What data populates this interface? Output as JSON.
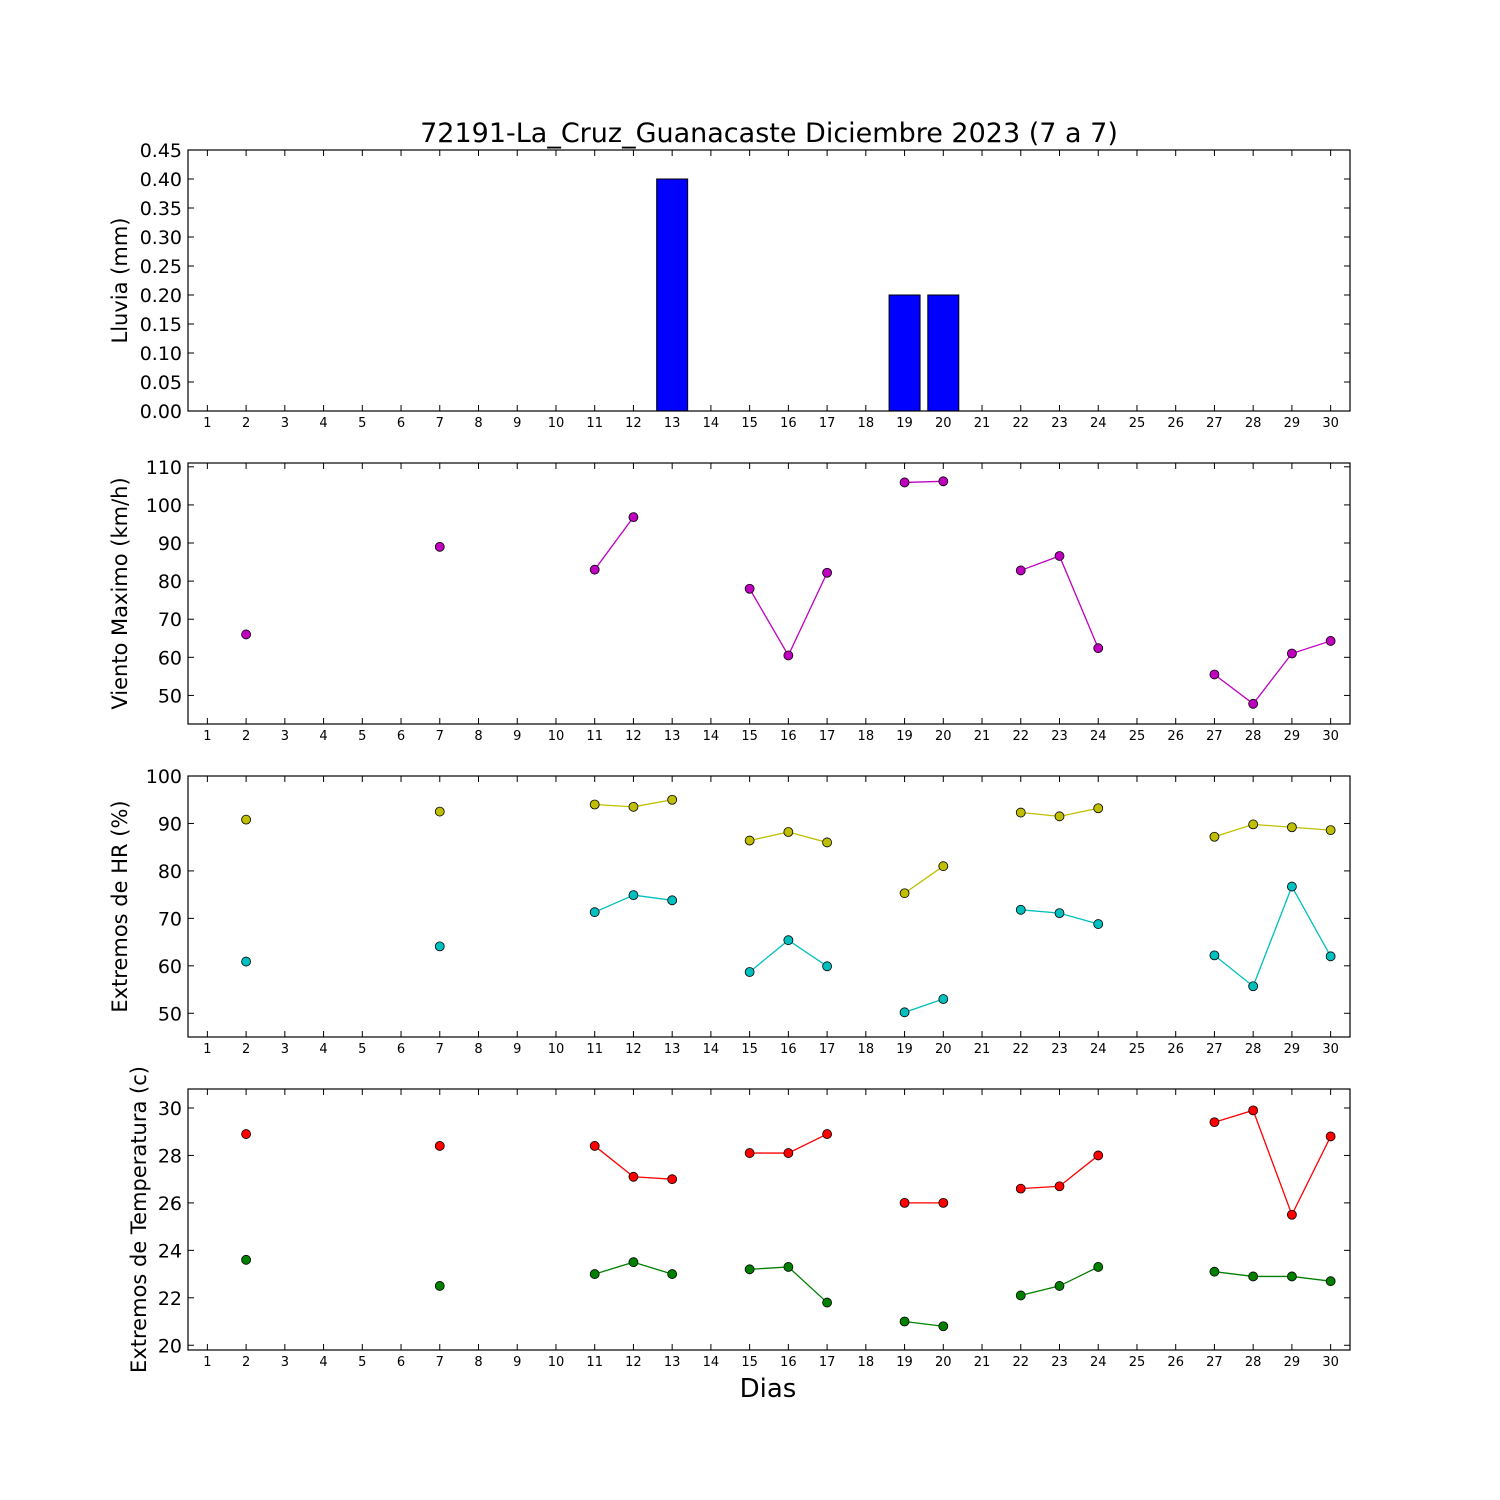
{
  "title": "72191-La_Cruz_Guanacaste Diciembre 2023  (7 a 7)",
  "xlabel": "Dias",
  "chart_data": [
    {
      "type": "bar",
      "ylabel": "Lluvia (mm)",
      "ylim": [
        0,
        0.45
      ],
      "yticks": [
        "0.00",
        "0.05",
        "0.10",
        "0.15",
        "0.20",
        "0.25",
        "0.30",
        "0.35",
        "0.40",
        "0.45"
      ],
      "xlim": [
        0.5,
        30.5
      ],
      "xticks": [
        "1",
        "2",
        "3",
        "4",
        "5",
        "6",
        "7",
        "8",
        "9",
        "10",
        "11",
        "12",
        "13",
        "14",
        "15",
        "16",
        "17",
        "18",
        "19",
        "20",
        "21",
        "22",
        "23",
        "24",
        "25",
        "26",
        "27",
        "28",
        "29",
        "30"
      ],
      "color": "#0000ff",
      "series": [
        {
          "x": [
            2,
            7,
            11,
            12,
            13,
            15,
            16,
            17,
            19,
            20,
            22,
            23,
            24,
            27,
            28,
            29,
            30
          ],
          "values": [
            0,
            0,
            0,
            0,
            0.4,
            0,
            0,
            0,
            0.2,
            0.2,
            0,
            0,
            0,
            0,
            0,
            0,
            0
          ]
        }
      ]
    },
    {
      "type": "line",
      "ylabel": "Viento Maximo (km/h)",
      "ylim": [
        42.5,
        111
      ],
      "yticks": [
        "50",
        "60",
        "70",
        "80",
        "90",
        "100",
        "110"
      ],
      "xlim": [
        0.5,
        30.5
      ],
      "xticks": [
        "1",
        "2",
        "3",
        "4",
        "5",
        "6",
        "7",
        "8",
        "9",
        "10",
        "11",
        "12",
        "13",
        "14",
        "15",
        "16",
        "17",
        "18",
        "19",
        "20",
        "21",
        "22",
        "23",
        "24",
        "25",
        "26",
        "27",
        "28",
        "29",
        "30"
      ],
      "series": [
        {
          "color": "#bf00bf",
          "segments": [
            [
              [
                2,
                66
              ]
            ],
            [
              [
                7,
                89
              ]
            ],
            [
              [
                11,
                83
              ],
              [
                12,
                96.8
              ]
            ],
            [
              [
                15,
                78
              ],
              [
                16,
                60.5
              ],
              [
                17,
                82.2
              ]
            ],
            [
              [
                19,
                105.9
              ],
              [
                20,
                106.2
              ]
            ],
            [
              [
                22,
                82.8
              ],
              [
                23,
                86.6
              ],
              [
                24,
                62.4
              ]
            ],
            [
              [
                27,
                55.5
              ],
              [
                28,
                47.8
              ],
              [
                29,
                61
              ],
              [
                30,
                64.3
              ]
            ]
          ]
        }
      ]
    },
    {
      "type": "line",
      "ylabel": "Extremos de HR (%)",
      "ylim": [
        45,
        100
      ],
      "yticks": [
        "50",
        "60",
        "70",
        "80",
        "90",
        "100"
      ],
      "xlim": [
        0.5,
        30.5
      ],
      "xticks": [
        "1",
        "2",
        "3",
        "4",
        "5",
        "6",
        "7",
        "8",
        "9",
        "10",
        "11",
        "12",
        "13",
        "14",
        "15",
        "16",
        "17",
        "18",
        "19",
        "20",
        "21",
        "22",
        "23",
        "24",
        "25",
        "26",
        "27",
        "28",
        "29",
        "30"
      ],
      "series": [
        {
          "color": "#bfbf00",
          "segments": [
            [
              [
                2,
                90.8
              ]
            ],
            [
              [
                7,
                92.5
              ]
            ],
            [
              [
                11,
                94
              ],
              [
                12,
                93.5
              ],
              [
                13,
                95
              ]
            ],
            [
              [
                15,
                86.4
              ],
              [
                16,
                88.2
              ],
              [
                17,
                86
              ]
            ],
            [
              [
                19,
                75.3
              ],
              [
                20,
                81
              ]
            ],
            [
              [
                22,
                92.3
              ],
              [
                23,
                91.5
              ],
              [
                24,
                93.2
              ]
            ],
            [
              [
                27,
                87.2
              ],
              [
                28,
                89.8
              ],
              [
                29,
                89.2
              ],
              [
                30,
                88.6
              ]
            ]
          ]
        },
        {
          "color": "#00bfbf",
          "segments": [
            [
              [
                2,
                60.9
              ]
            ],
            [
              [
                7,
                64.1
              ]
            ],
            [
              [
                11,
                71.3
              ],
              [
                12,
                74.9
              ],
              [
                13,
                73.8
              ]
            ],
            [
              [
                15,
                58.7
              ],
              [
                16,
                65.4
              ],
              [
                17,
                59.9
              ]
            ],
            [
              [
                19,
                50.2
              ],
              [
                20,
                53
              ]
            ],
            [
              [
                22,
                71.8
              ],
              [
                23,
                71.1
              ],
              [
                24,
                68.8
              ]
            ],
            [
              [
                27,
                62.2
              ],
              [
                28,
                55.7
              ],
              [
                29,
                76.7
              ],
              [
                30,
                62
              ]
            ]
          ]
        }
      ]
    },
    {
      "type": "line",
      "ylabel": "Extremos de Temperatura (c)",
      "ylim": [
        19.8,
        30.8
      ],
      "yticks": [
        "20",
        "22",
        "24",
        "26",
        "28",
        "30"
      ],
      "xlim": [
        0.5,
        30.5
      ],
      "xticks": [
        "1",
        "2",
        "3",
        "4",
        "5",
        "6",
        "7",
        "8",
        "9",
        "10",
        "11",
        "12",
        "13",
        "14",
        "15",
        "16",
        "17",
        "18",
        "19",
        "20",
        "21",
        "22",
        "23",
        "24",
        "25",
        "26",
        "27",
        "28",
        "29",
        "30"
      ],
      "series": [
        {
          "color": "#ff0000",
          "segments": [
            [
              [
                2,
                28.9
              ]
            ],
            [
              [
                7,
                28.4
              ]
            ],
            [
              [
                11,
                28.4
              ],
              [
                12,
                27.1
              ],
              [
                13,
                27
              ]
            ],
            [
              [
                15,
                28.1
              ],
              [
                16,
                28.1
              ],
              [
                17,
                28.9
              ]
            ],
            [
              [
                19,
                26
              ],
              [
                20,
                26
              ]
            ],
            [
              [
                22,
                26.6
              ],
              [
                23,
                26.7
              ],
              [
                24,
                28
              ]
            ],
            [
              [
                27,
                29.4
              ],
              [
                28,
                29.9
              ],
              [
                29,
                25.5
              ],
              [
                30,
                28.8
              ]
            ]
          ]
        },
        {
          "color": "#008000",
          "segments": [
            [
              [
                2,
                23.6
              ]
            ],
            [
              [
                7,
                22.5
              ]
            ],
            [
              [
                11,
                23
              ],
              [
                12,
                23.5
              ],
              [
                13,
                23
              ]
            ],
            [
              [
                15,
                23.2
              ],
              [
                16,
                23.3
              ],
              [
                17,
                21.8
              ]
            ],
            [
              [
                19,
                21
              ],
              [
                20,
                20.8
              ]
            ],
            [
              [
                22,
                22.1
              ],
              [
                23,
                22.5
              ],
              [
                24,
                23.3
              ]
            ],
            [
              [
                27,
                23.1
              ],
              [
                28,
                22.9
              ],
              [
                29,
                22.9
              ],
              [
                30,
                22.7
              ]
            ]
          ]
        }
      ]
    }
  ]
}
